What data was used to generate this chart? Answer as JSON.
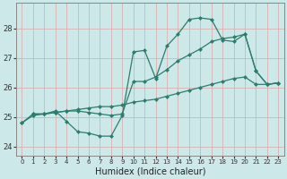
{
  "xlabel": "Humidex (Indice chaleur)",
  "bg_color": "#cce8e8",
  "grid_color": "#aad0d0",
  "line_color": "#2d7d6e",
  "xlim": [
    -0.5,
    23.5
  ],
  "ylim": [
    23.7,
    28.85
  ],
  "yticks": [
    24,
    25,
    26,
    27,
    28
  ],
  "xticks": [
    0,
    1,
    2,
    3,
    4,
    5,
    6,
    7,
    8,
    9,
    10,
    11,
    12,
    13,
    14,
    15,
    16,
    17,
    18,
    19,
    20,
    21,
    22,
    23
  ],
  "line_wavy_x": [
    0,
    1,
    2,
    3,
    4,
    5,
    6,
    7,
    8,
    9,
    10,
    11,
    12,
    13,
    14,
    15,
    16,
    17,
    18,
    19,
    20,
    21,
    22,
    23
  ],
  "line_wavy_y": [
    24.8,
    25.1,
    25.1,
    25.2,
    24.85,
    24.5,
    24.45,
    24.35,
    24.35,
    25.05,
    27.2,
    27.25,
    26.3,
    27.4,
    27.8,
    28.3,
    28.35,
    28.3,
    27.6,
    27.55,
    27.8,
    26.55,
    26.1,
    26.15
  ],
  "line_diag_x": [
    0,
    1,
    2,
    3,
    4,
    5,
    6,
    7,
    8,
    9,
    10,
    11,
    12,
    13,
    14,
    15,
    16,
    17,
    18,
    19,
    20,
    21,
    22,
    23
  ],
  "line_diag_y": [
    24.8,
    25.05,
    25.1,
    25.15,
    25.2,
    25.25,
    25.3,
    25.35,
    25.35,
    25.4,
    25.5,
    25.55,
    25.6,
    25.7,
    25.8,
    25.9,
    26.0,
    26.1,
    26.2,
    26.3,
    26.35,
    26.1,
    26.1,
    26.15
  ],
  "line_mid_x": [
    1,
    2,
    3,
    4,
    5,
    6,
    7,
    8,
    9,
    10,
    11,
    12,
    13,
    14,
    15,
    16,
    17,
    18,
    19,
    20,
    21,
    22,
    23
  ],
  "line_mid_y": [
    25.1,
    25.1,
    25.15,
    25.2,
    25.2,
    25.15,
    25.1,
    25.05,
    25.1,
    26.2,
    26.2,
    26.35,
    26.6,
    26.9,
    27.1,
    27.3,
    27.55,
    27.65,
    27.7,
    27.8,
    26.55,
    26.1,
    26.15
  ],
  "marker": "D",
  "marker_size": 2.5
}
